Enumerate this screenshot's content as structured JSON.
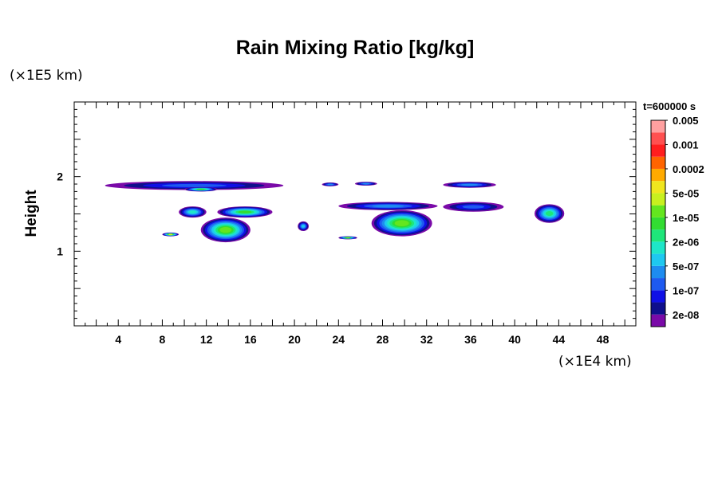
{
  "chart_data": {
    "type": "contour",
    "title": "Rain Mixing Ratio [kg/kg]",
    "ylabel": "Height",
    "x_scale_label": "(×1E4 km)",
    "y_scale_label": "(×1E5 km)",
    "time_label": "t=600000 s",
    "xlim": [
      0,
      51
    ],
    "ylim": [
      0,
      3
    ],
    "x_ticks": [
      4,
      8,
      12,
      16,
      20,
      24,
      28,
      32,
      36,
      40,
      44,
      48
    ],
    "y_ticks": [
      1,
      2
    ],
    "colorbar": {
      "colors": [
        "#7a0aa8",
        "#0f0f8c",
        "#1010e6",
        "#1e5af0",
        "#1e8cf0",
        "#1ec8f0",
        "#1ee6c8",
        "#1ee67a",
        "#32dc32",
        "#64e61e",
        "#c8f01e",
        "#f0e61e",
        "#ffaa00",
        "#ff6400",
        "#ff1e1e",
        "#ff5050",
        "#ffa0a0"
      ],
      "labels": [
        "2e-08",
        "1e-07",
        "5e-07",
        "2e-06",
        "1e-05",
        "5e-05",
        "0.0002",
        "0.001",
        "0.005"
      ]
    },
    "regions": [
      {
        "x": [
          2.8,
          19
        ],
        "y": [
          1.82,
          1.94
        ],
        "level": 3
      },
      {
        "x": [
          10,
          13
        ],
        "y": [
          1.8,
          1.86
        ],
        "level": 8
      },
      {
        "x": [
          22.5,
          24
        ],
        "y": [
          1.87,
          1.92
        ],
        "level": 4
      },
      {
        "x": [
          25.5,
          27.5
        ],
        "y": [
          1.88,
          1.93
        ],
        "level": 4
      },
      {
        "x": [
          33.5,
          38.3
        ],
        "y": [
          1.85,
          1.93
        ],
        "level": 4
      },
      {
        "x": [
          9.5,
          12
        ],
        "y": [
          1.45,
          1.6
        ],
        "level": 6
      },
      {
        "x": [
          13,
          18
        ],
        "y": [
          1.45,
          1.6
        ],
        "level": 8
      },
      {
        "x": [
          11.5,
          16
        ],
        "y": [
          1.12,
          1.45
        ],
        "level": 9
      },
      {
        "x": [
          24,
          33
        ],
        "y": [
          1.55,
          1.66
        ],
        "level": 4
      },
      {
        "x": [
          27,
          32.5
        ],
        "y": [
          1.2,
          1.55
        ],
        "level": 9
      },
      {
        "x": [
          33.5,
          39
        ],
        "y": [
          1.53,
          1.66
        ],
        "level": 3
      },
      {
        "x": [
          41.8,
          44.5
        ],
        "y": [
          1.38,
          1.63
        ],
        "level": 7
      },
      {
        "x": [
          8,
          9.5
        ],
        "y": [
          1.2,
          1.25
        ],
        "level": 10
      },
      {
        "x": [
          24,
          25.7
        ],
        "y": [
          1.16,
          1.2
        ],
        "level": 9
      },
      {
        "x": [
          20.3,
          21.3
        ],
        "y": [
          1.27,
          1.4
        ],
        "level": 5
      }
    ]
  }
}
